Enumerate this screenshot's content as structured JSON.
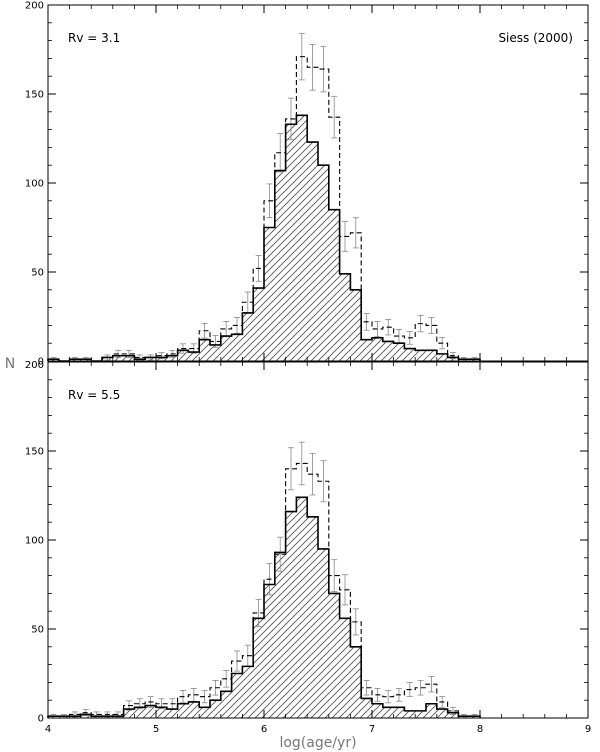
{
  "figure": {
    "xlabel": "log(age/yr)",
    "ylabel": "N"
  },
  "chart_data": [
    {
      "type": "histogram",
      "panel_label": "Rv = 3.1",
      "annotation": "Siess (2000)",
      "xlim": [
        4,
        9
      ],
      "ylim": [
        0,
        200
      ],
      "xticks": [
        "4",
        "5",
        "6",
        "7",
        "8",
        "9"
      ],
      "yticks": [
        "0",
        "50",
        "100",
        "150",
        "200"
      ],
      "bin_edges": [
        4.0,
        4.1,
        4.2,
        4.3,
        4.4,
        4.5,
        4.6,
        4.7,
        4.8,
        4.9,
        5.0,
        5.1,
        5.2,
        5.3,
        5.4,
        5.5,
        5.6,
        5.7,
        5.8,
        5.9,
        6.0,
        6.1,
        6.2,
        6.3,
        6.4,
        6.5,
        6.6,
        6.7,
        6.8,
        6.9,
        7.0,
        7.1,
        7.2,
        7.3,
        7.4,
        7.5,
        7.6,
        7.7,
        7.8,
        7.9,
        8.0
      ],
      "series": [
        {
          "style": "solid-hatched",
          "values": [
            1,
            0,
            1,
            1,
            0,
            2,
            3,
            3,
            1,
            2,
            2,
            3,
            6,
            5,
            12,
            9,
            14,
            15,
            27,
            41,
            75,
            107,
            133,
            138,
            123,
            110,
            85,
            49,
            40,
            12,
            13,
            11,
            10,
            7,
            6,
            6,
            4,
            2,
            1,
            1
          ]
        },
        {
          "style": "dashed-errorbars",
          "values": [
            1,
            0,
            1,
            1,
            0,
            2,
            4,
            4,
            2,
            2,
            3,
            4,
            7,
            7,
            17,
            11,
            18,
            20,
            33,
            52,
            90,
            117,
            136,
            171,
            165,
            164,
            137,
            70,
            72,
            22,
            18,
            19,
            14,
            13,
            21,
            20,
            10,
            3,
            1,
            1
          ]
        }
      ]
    },
    {
      "type": "histogram",
      "panel_label": "Rv = 5.5",
      "annotation": "",
      "xlim": [
        4,
        9
      ],
      "ylim": [
        0,
        200
      ],
      "xticks": [
        "4",
        "5",
        "6",
        "7",
        "8",
        "9"
      ],
      "yticks": [
        "0",
        "50",
        "100",
        "150",
        "200"
      ],
      "bin_edges": [
        4.0,
        4.1,
        4.2,
        4.3,
        4.4,
        4.5,
        4.6,
        4.7,
        4.8,
        4.9,
        5.0,
        5.1,
        5.2,
        5.3,
        5.4,
        5.5,
        5.6,
        5.7,
        5.8,
        5.9,
        6.0,
        6.1,
        6.2,
        6.3,
        6.4,
        6.5,
        6.6,
        6.7,
        6.8,
        6.9,
        7.0,
        7.1,
        7.2,
        7.3,
        7.4,
        7.5,
        7.6,
        7.7,
        7.8,
        7.9,
        8.0
      ],
      "series": [
        {
          "style": "solid-hatched",
          "values": [
            1,
            1,
            1,
            2,
            1,
            1,
            1,
            5,
            6,
            7,
            6,
            5,
            8,
            9,
            6,
            10,
            15,
            25,
            29,
            56,
            75,
            93,
            116,
            124,
            113,
            95,
            70,
            56,
            40,
            11,
            8,
            6,
            6,
            4,
            4,
            8,
            5,
            3,
            1,
            1
          ]
        },
        {
          "style": "dashed-errorbars",
          "values": [
            1,
            1,
            2,
            3,
            2,
            2,
            2,
            7,
            8,
            9,
            8,
            8,
            12,
            13,
            12,
            17,
            22,
            32,
            35,
            59,
            78,
            92,
            140,
            143,
            137,
            133,
            80,
            72,
            54,
            17,
            13,
            12,
            13,
            16,
            17,
            19,
            9,
            4,
            1,
            1
          ]
        }
      ]
    }
  ]
}
